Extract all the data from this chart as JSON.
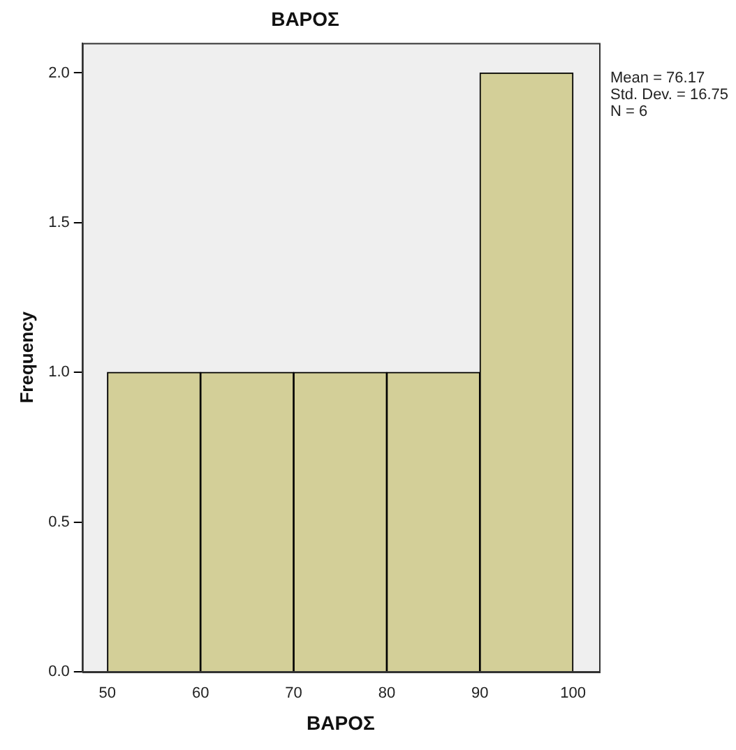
{
  "chart_data": {
    "type": "histogram",
    "title": "ΒΑΡΟΣ",
    "xlabel": "ΒΑΡΟΣ",
    "ylabel": "Frequency",
    "bins": [
      50,
      60,
      70,
      80,
      90,
      100
    ],
    "values": [
      1,
      1,
      1,
      1,
      2
    ],
    "color": "#d3cf98",
    "xlim": [
      47.3,
      102.8
    ],
    "xticks": [
      50,
      60,
      70,
      80,
      90,
      100
    ],
    "ylim": [
      0,
      2.1
    ],
    "yticks": [
      {
        "value": 0,
        "label": "0.0"
      },
      {
        "value": 0.5,
        "label": "0.5"
      },
      {
        "value": 1,
        "label": "1.0"
      },
      {
        "value": 1.5,
        "label": "1.5"
      },
      {
        "value": 2,
        "label": "2.0"
      }
    ],
    "annotations": [
      "Mean = 76.17",
      "Std. Dev. = 16.75",
      "N = 6"
    ],
    "grid": false,
    "legend": false
  }
}
